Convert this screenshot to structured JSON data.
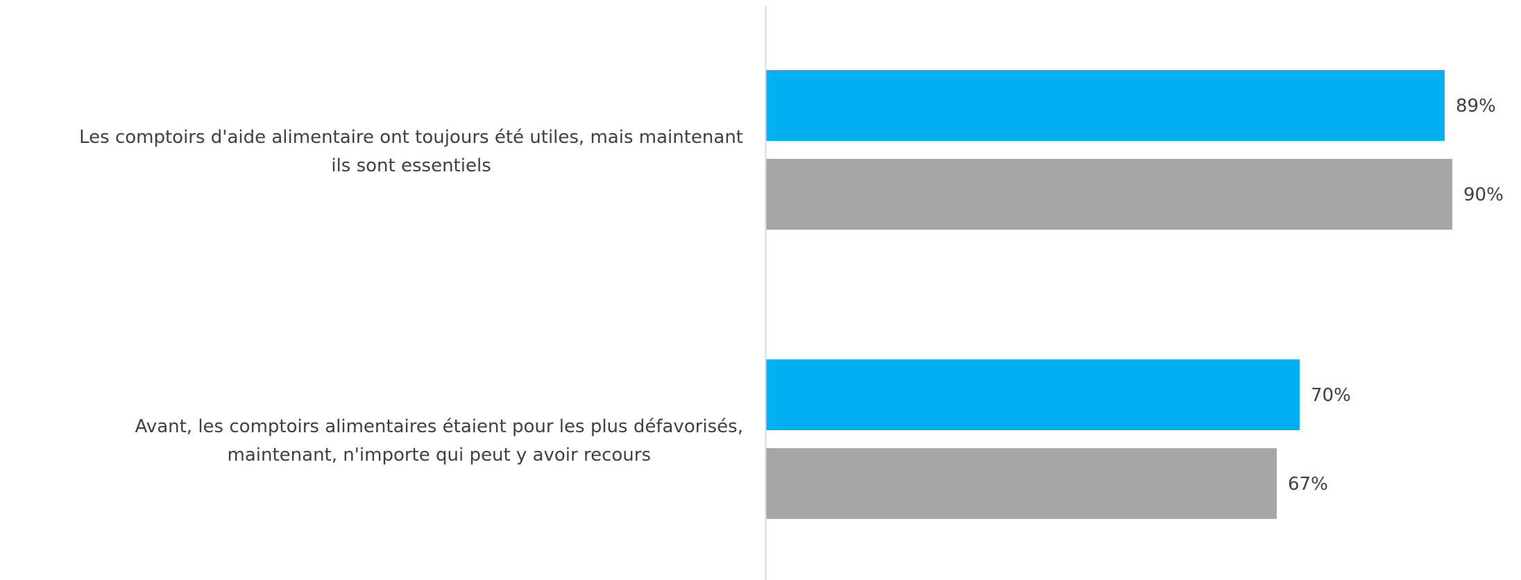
{
  "chart_data": {
    "type": "bar",
    "orientation": "horizontal",
    "categories": [
      [
        "Les comptoirs d'aide alimentaire ont toujours été utiles, mais maintenant",
        "ils sont essentiels"
      ],
      [
        "Avant, les comptoirs alimentaires étaient pour les plus défavorisés,",
        "maintenant, n'importe qui peut y avoir recours"
      ]
    ],
    "series": [
      {
        "values": [
          89,
          70
        ],
        "color": "#00B0F0"
      },
      {
        "values": [
          90,
          67
        ],
        "color": "#A6A6A6"
      }
    ],
    "value_labels": [
      [
        "89%",
        "70%"
      ],
      [
        "90%",
        "67%"
      ]
    ],
    "xlim": [
      0,
      100
    ],
    "grid": false,
    "axis_line_color": "#D9D9D9"
  }
}
